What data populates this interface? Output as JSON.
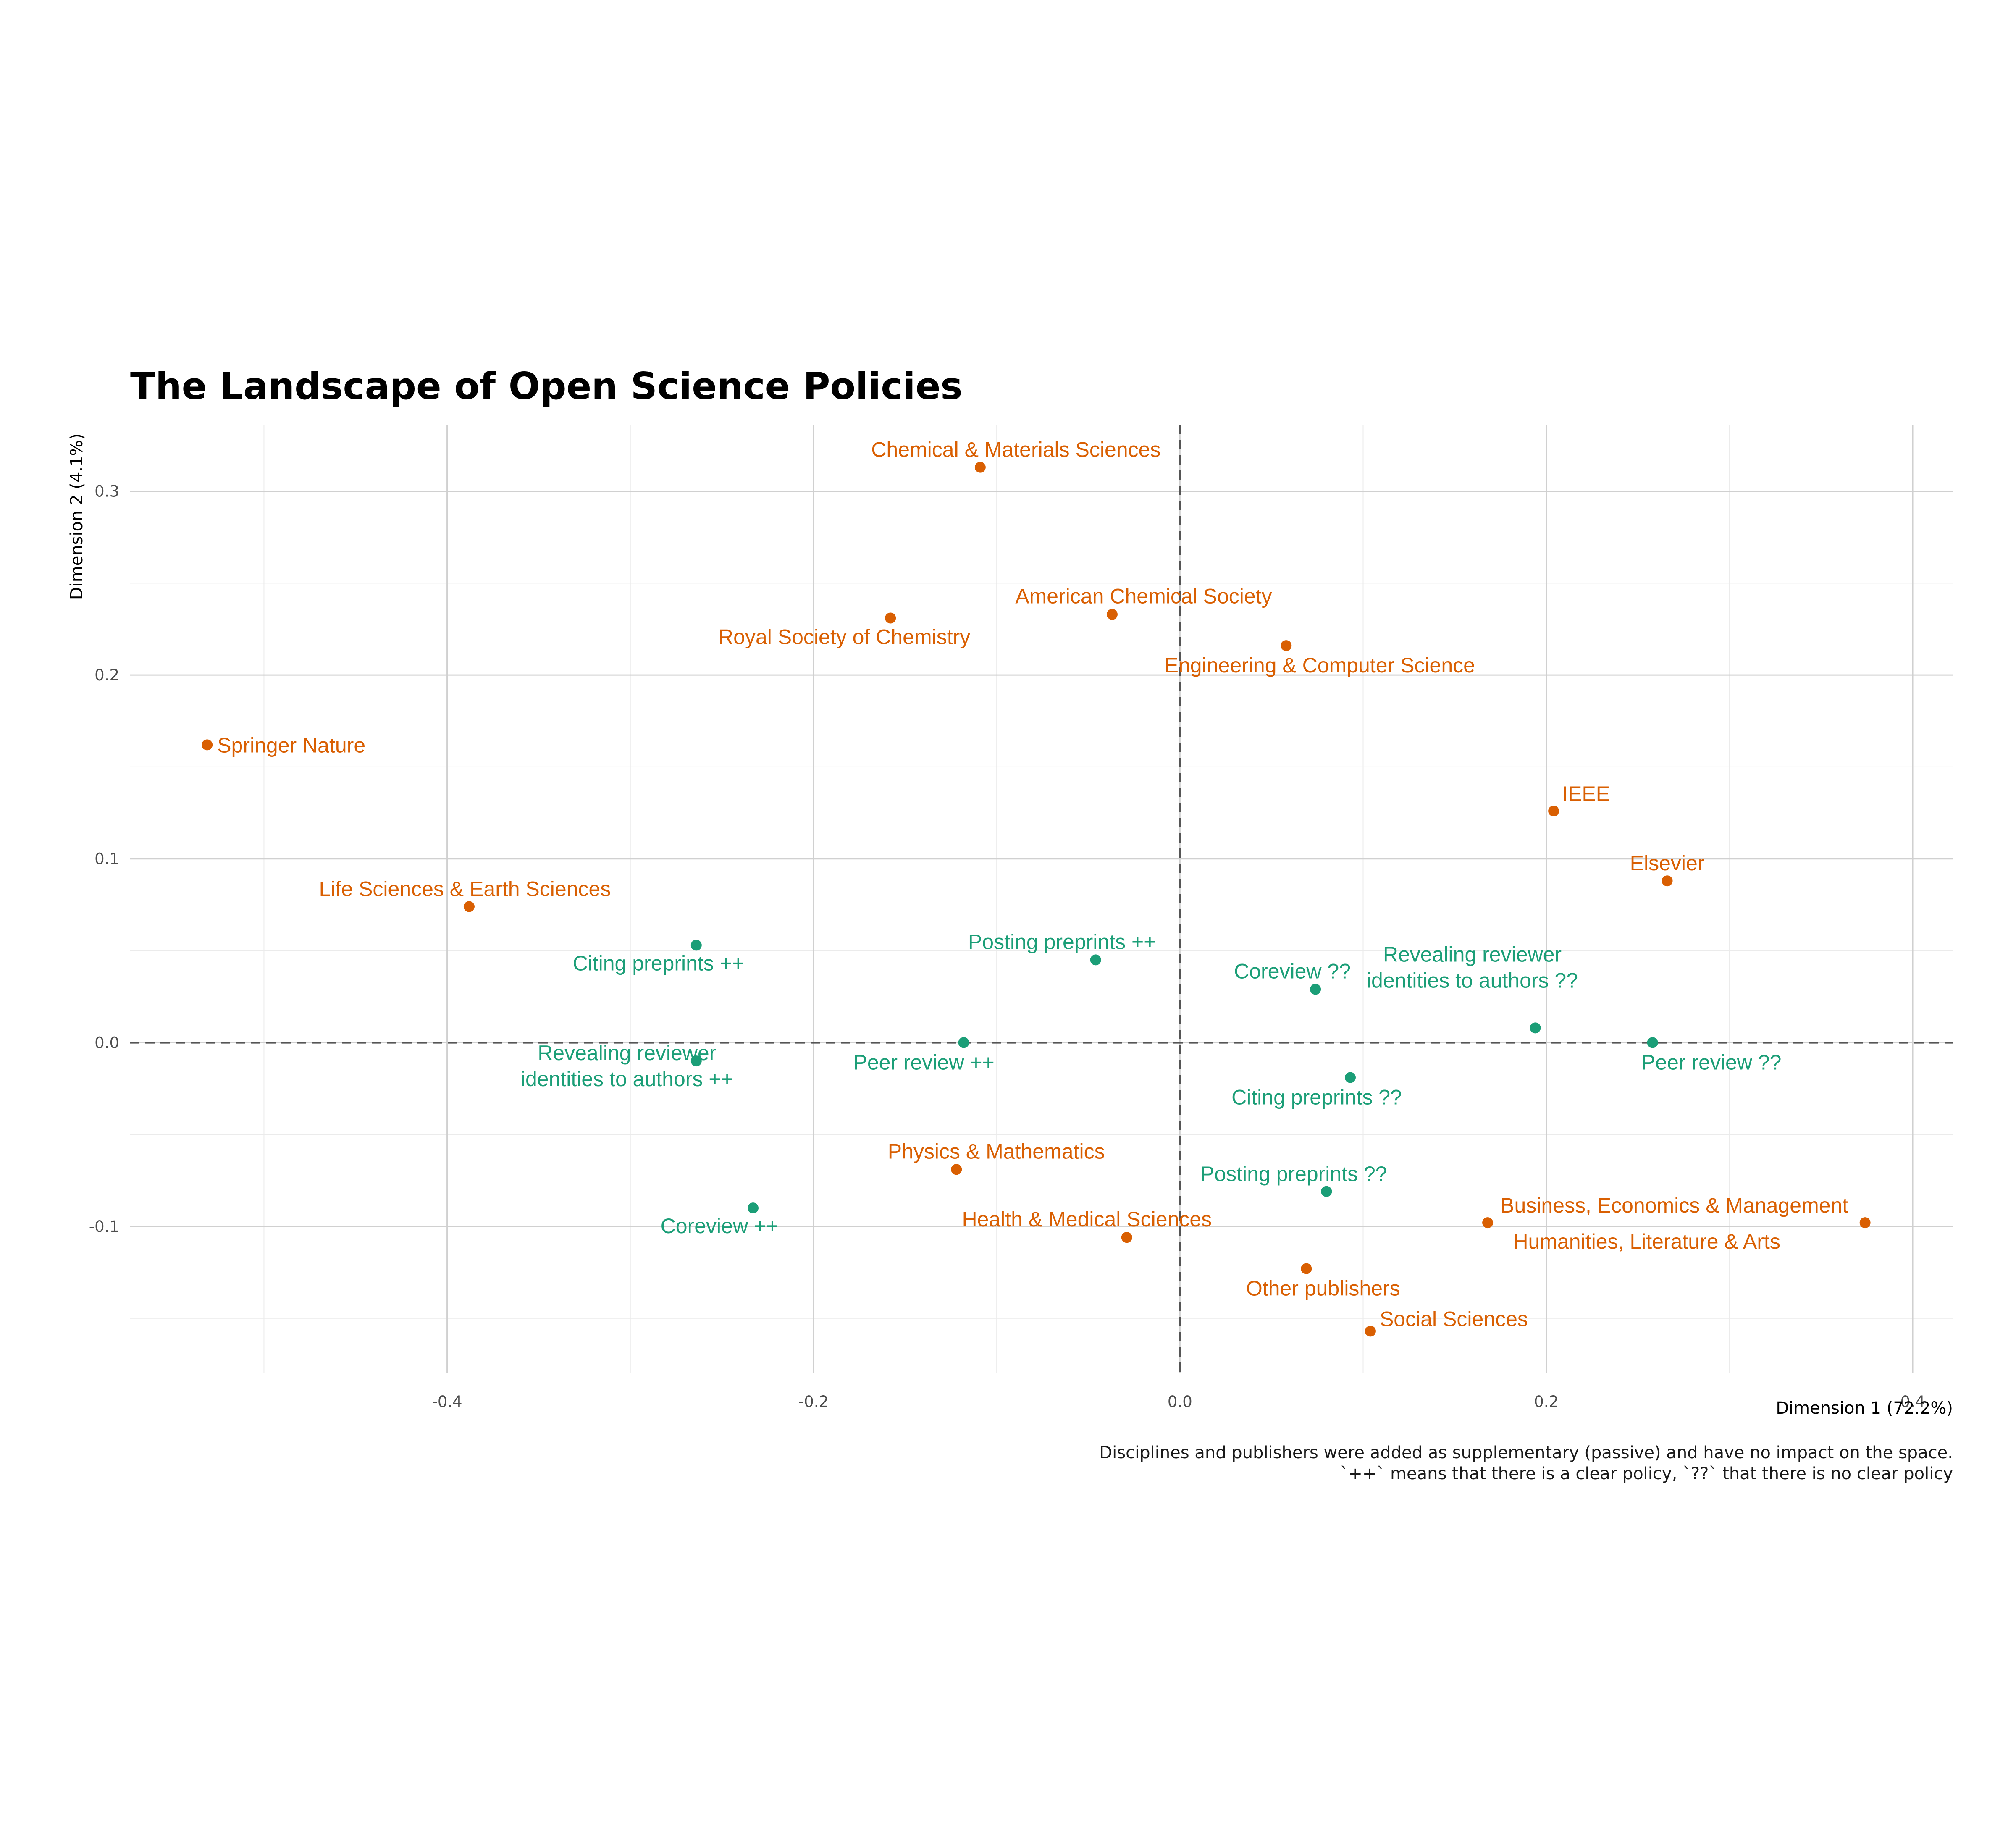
{
  "chart_data": {
    "type": "scatter",
    "title": "The Landscape of Open Science Policies",
    "xlabel": "Dimension 1 (72.2%)",
    "ylabel": "Dimension 2 (4.1%)",
    "xlim": [
      -0.573,
      0.422
    ],
    "ylim": [
      -0.18,
      0.336
    ],
    "x_ticks": [
      -0.4,
      -0.2,
      0.0,
      0.2,
      0.4
    ],
    "x_tick_labels": [
      "-0.4",
      "-0.2",
      "0.0",
      "0.2",
      "0.4"
    ],
    "y_ticks": [
      -0.1,
      0.0,
      0.1,
      0.2,
      0.3
    ],
    "y_tick_labels": [
      "-0.1",
      "0.0",
      "0.1",
      "0.2",
      "0.3"
    ],
    "grid": true,
    "reference_lines": {
      "x": 0,
      "y": 0,
      "style": "dashed"
    },
    "caption": [
      "Disciplines and publishers were added as supplementary (passive) and have no impact on the space.",
      "`++` means that there is a clear policy, `??` that there is no clear policy"
    ],
    "colors": {
      "policy": "#1b9e77",
      "supplementary": "#d95f02"
    },
    "series": [
      {
        "color": "#1b9e77",
        "points": [
          {
            "label": [
              "Citing preprints ++"
            ],
            "x": -0.264,
            "y": 0.053
          },
          {
            "label": [
              "Posting preprints ++"
            ],
            "x": -0.046,
            "y": 0.045
          },
          {
            "label": [
              "Coreview ??"
            ],
            "x": 0.074,
            "y": 0.029
          },
          {
            "label": [
              "Revealing reviewer",
              "identities to authors ??"
            ],
            "x": 0.194,
            "y": 0.008
          },
          {
            "label": [
              "Peer review ??"
            ],
            "x": 0.258,
            "y": 0.0
          },
          {
            "label": [
              "Peer review ++"
            ],
            "x": -0.118,
            "y": 0.0
          },
          {
            "label": [
              "Revealing reviewer",
              "identities to authors ++"
            ],
            "x": -0.264,
            "y": -0.01
          },
          {
            "label": [
              "Citing preprints ??"
            ],
            "x": 0.093,
            "y": -0.019
          },
          {
            "label": [
              "Posting preprints ??"
            ],
            "x": 0.08,
            "y": -0.081
          },
          {
            "label": [
              "Coreview ++"
            ],
            "x": -0.233,
            "y": -0.09
          }
        ]
      },
      {
        "color": "#d95f02",
        "points": [
          {
            "label": [
              "Chemical & Materials Sciences"
            ],
            "x": -0.109,
            "y": 0.313
          },
          {
            "label": [
              "Royal Society of Chemistry"
            ],
            "x": -0.158,
            "y": 0.231
          },
          {
            "label": [
              "American Chemical Society"
            ],
            "x": -0.037,
            "y": 0.233
          },
          {
            "label": [
              "Engineering & Computer Science"
            ],
            "x": 0.058,
            "y": 0.216
          },
          {
            "label": [
              "Springer Nature"
            ],
            "x": -0.531,
            "y": 0.162
          },
          {
            "label": [
              "IEEE"
            ],
            "x": 0.204,
            "y": 0.126
          },
          {
            "label": [
              "Elsevier"
            ],
            "x": 0.266,
            "y": 0.088
          },
          {
            "label": [
              "Life Sciences & Earth Sciences"
            ],
            "x": -0.388,
            "y": 0.074
          },
          {
            "label": [
              "Physics & Mathematics"
            ],
            "x": -0.122,
            "y": -0.069
          },
          {
            "label": [
              "Health & Medical Sciences"
            ],
            "x": -0.029,
            "y": -0.106
          },
          {
            "label": [
              "Business, Economics & Management"
            ],
            "x": 0.168,
            "y": -0.098
          },
          {
            "label": [
              "Humanities, Literature & Arts"
            ],
            "x": 0.374,
            "y": -0.098
          },
          {
            "label": [
              "Other publishers"
            ],
            "x": 0.069,
            "y": -0.123
          },
          {
            "label": [
              "Social Sciences"
            ],
            "x": 0.104,
            "y": -0.157
          }
        ]
      }
    ]
  }
}
